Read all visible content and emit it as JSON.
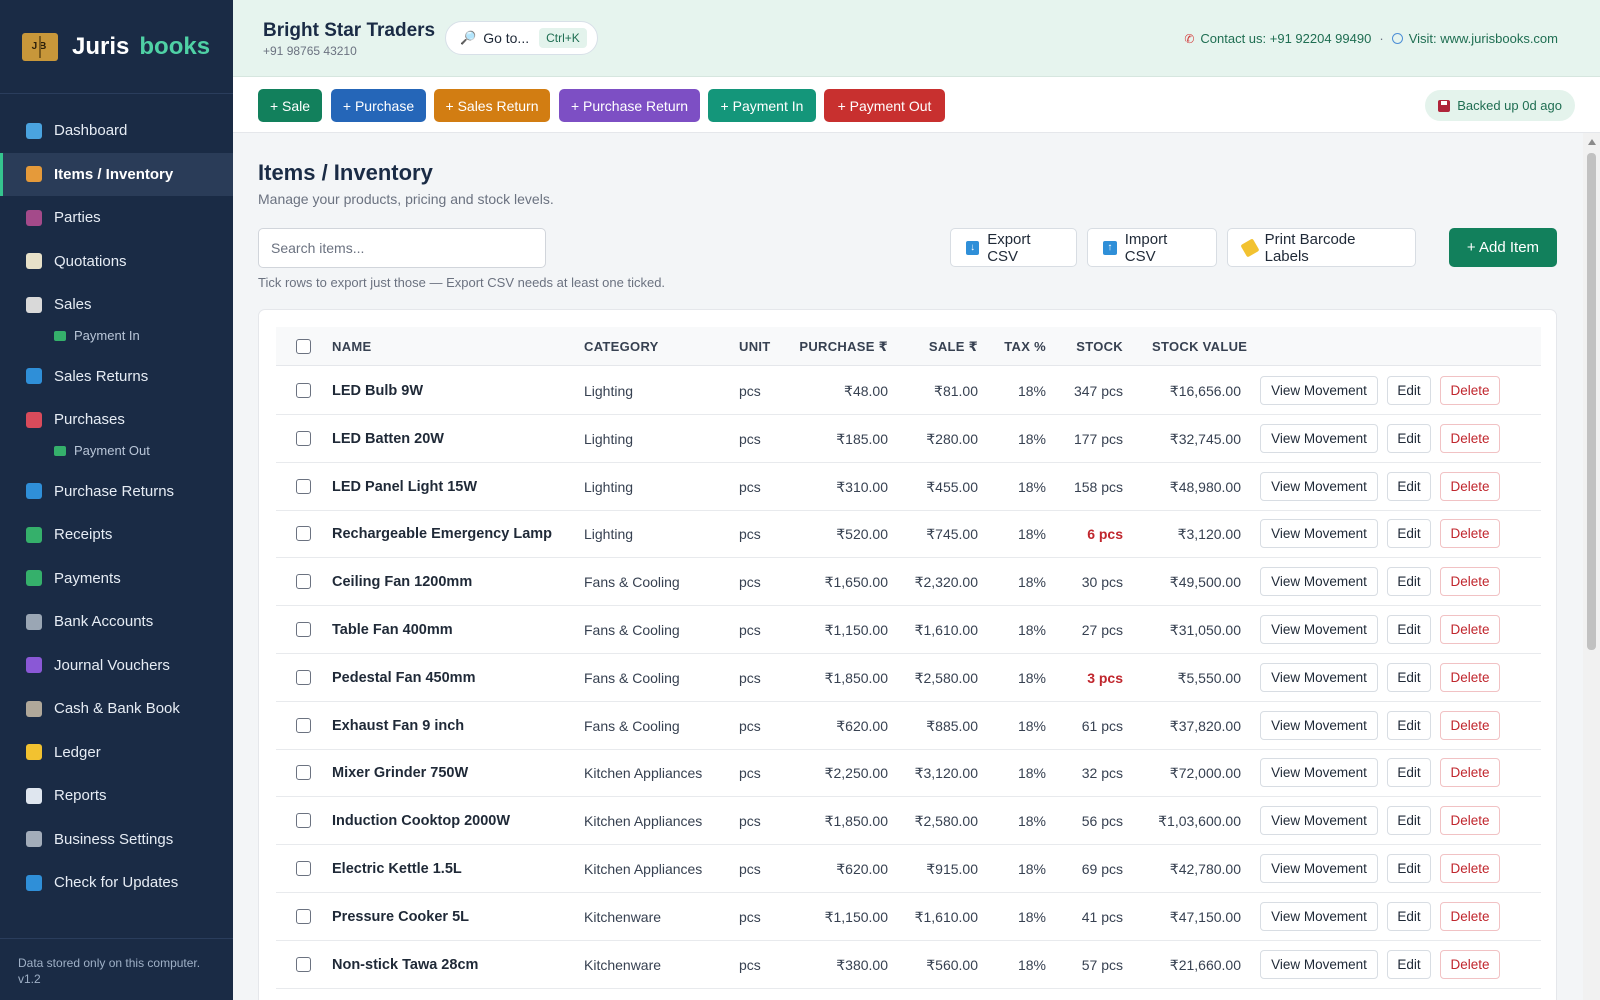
{
  "brand": {
    "name_part1": "Juris",
    "name_part2": "books",
    "logo_text": "JB"
  },
  "sidebar": {
    "items": [
      {
        "label": "Dashboard",
        "icon": "chart-icon",
        "color": "#4aa3df"
      },
      {
        "label": "Items / Inventory",
        "icon": "box-icon",
        "color": "#e59a3a",
        "active": true
      },
      {
        "label": "Parties",
        "icon": "people-icon",
        "color": "#a44a8a"
      },
      {
        "label": "Quotations",
        "icon": "memo-icon",
        "color": "#e7e1c9"
      },
      {
        "label": "Sales",
        "icon": "receipt-icon",
        "color": "#d9d9d9"
      },
      {
        "label": "Payment In",
        "icon": "cash-icon",
        "color": "#35b06b",
        "sub": true
      },
      {
        "label": "Sales Returns",
        "icon": "return-icon",
        "color": "#2f8fd8"
      },
      {
        "label": "Purchases",
        "icon": "cart-icon",
        "color": "#d94b5b"
      },
      {
        "label": "Payment Out",
        "icon": "cash-icon",
        "color": "#35b06b",
        "sub": true
      },
      {
        "label": "Purchase Returns",
        "icon": "return-icon",
        "color": "#2f8fd8"
      },
      {
        "label": "Receipts",
        "icon": "cash-icon",
        "color": "#35b06b"
      },
      {
        "label": "Payments",
        "icon": "money-wings-icon",
        "color": "#35b06b"
      },
      {
        "label": "Bank Accounts",
        "icon": "bank-icon",
        "color": "#9aa6b4"
      },
      {
        "label": "Journal Vouchers",
        "icon": "journal-icon",
        "color": "#8a58d6"
      },
      {
        "label": "Cash & Bank Book",
        "icon": "building-icon",
        "color": "#b0a89a"
      },
      {
        "label": "Ledger",
        "icon": "ledger-icon",
        "color": "#f2c230"
      },
      {
        "label": "Reports",
        "icon": "line-chart-icon",
        "color": "#dfe6ef"
      },
      {
        "label": "Business Settings",
        "icon": "gear-icon",
        "color": "#a3adba"
      },
      {
        "label": "Check for Updates",
        "icon": "refresh-icon",
        "color": "#2f8fd8"
      }
    ],
    "footer_line1": "Data stored only on this computer.",
    "footer_line2": "v1.2"
  },
  "header": {
    "business_name": "Bright Star Traders",
    "business_phone": "+91 98765 43210",
    "goto_label": "Go to...",
    "goto_shortcut": "Ctrl+K",
    "contact": "Contact us: +91 92204 99490",
    "separator": "·",
    "visit": "Visit: www.jurisbooks.com"
  },
  "quick_actions": [
    {
      "label": "+ Sale",
      "color": "#12805c"
    },
    {
      "label": "+ Purchase",
      "color": "#2566b8"
    },
    {
      "label": "+ Sales Return",
      "color": "#d27d12"
    },
    {
      "label": "+ Purchase Return",
      "color": "#7d4fc4"
    },
    {
      "label": "+ Payment In",
      "color": "#14967a"
    },
    {
      "label": "+ Payment Out",
      "color": "#c8302f"
    }
  ],
  "backup_status": "Backed up 0d ago",
  "page": {
    "title": "Items / Inventory",
    "subtitle": "Manage your products, pricing and stock levels.",
    "search_placeholder": "Search items...",
    "hint": "Tick rows to export just those — Export CSV needs at least one ticked.",
    "export_label": "Export CSV",
    "import_label": "Import CSV",
    "barcode_label": "Print Barcode Labels",
    "add_label": "+ Add Item"
  },
  "table": {
    "headers": {
      "name": "NAME",
      "category": "CATEGORY",
      "unit": "UNIT",
      "purchase": "PURCHASE ₹",
      "sale": "SALE ₹",
      "tax": "TAX %",
      "stock": "STOCK",
      "value": "STOCK VALUE"
    },
    "action_labels": {
      "view": "View Movement",
      "edit": "Edit",
      "delete": "Delete"
    },
    "rows": [
      {
        "name": "LED Bulb 9W",
        "category": "Lighting",
        "unit": "pcs",
        "purchase": "₹48.00",
        "sale": "₹81.00",
        "tax": "18%",
        "stock": "347 pcs",
        "value": "₹16,656.00",
        "low": false
      },
      {
        "name": "LED Batten 20W",
        "category": "Lighting",
        "unit": "pcs",
        "purchase": "₹185.00",
        "sale": "₹280.00",
        "tax": "18%",
        "stock": "177 pcs",
        "value": "₹32,745.00",
        "low": false
      },
      {
        "name": "LED Panel Light 15W",
        "category": "Lighting",
        "unit": "pcs",
        "purchase": "₹310.00",
        "sale": "₹455.00",
        "tax": "18%",
        "stock": "158 pcs",
        "value": "₹48,980.00",
        "low": false
      },
      {
        "name": "Rechargeable Emergency Lamp",
        "category": "Lighting",
        "unit": "pcs",
        "purchase": "₹520.00",
        "sale": "₹745.00",
        "tax": "18%",
        "stock": "6 pcs",
        "value": "₹3,120.00",
        "low": true
      },
      {
        "name": "Ceiling Fan 1200mm",
        "category": "Fans & Cooling",
        "unit": "pcs",
        "purchase": "₹1,650.00",
        "sale": "₹2,320.00",
        "tax": "18%",
        "stock": "30 pcs",
        "value": "₹49,500.00",
        "low": false
      },
      {
        "name": "Table Fan 400mm",
        "category": "Fans & Cooling",
        "unit": "pcs",
        "purchase": "₹1,150.00",
        "sale": "₹1,610.00",
        "tax": "18%",
        "stock": "27 pcs",
        "value": "₹31,050.00",
        "low": false
      },
      {
        "name": "Pedestal Fan 450mm",
        "category": "Fans & Cooling",
        "unit": "pcs",
        "purchase": "₹1,850.00",
        "sale": "₹2,580.00",
        "tax": "18%",
        "stock": "3 pcs",
        "value": "₹5,550.00",
        "low": true
      },
      {
        "name": "Exhaust Fan 9 inch",
        "category": "Fans & Cooling",
        "unit": "pcs",
        "purchase": "₹620.00",
        "sale": "₹885.00",
        "tax": "18%",
        "stock": "61 pcs",
        "value": "₹37,820.00",
        "low": false
      },
      {
        "name": "Mixer Grinder 750W",
        "category": "Kitchen Appliances",
        "unit": "pcs",
        "purchase": "₹2,250.00",
        "sale": "₹3,120.00",
        "tax": "18%",
        "stock": "32 pcs",
        "value": "₹72,000.00",
        "low": false
      },
      {
        "name": "Induction Cooktop 2000W",
        "category": "Kitchen Appliances",
        "unit": "pcs",
        "purchase": "₹1,850.00",
        "sale": "₹2,580.00",
        "tax": "18%",
        "stock": "56 pcs",
        "value": "₹1,03,600.00",
        "low": false
      },
      {
        "name": "Electric Kettle 1.5L",
        "category": "Kitchen Appliances",
        "unit": "pcs",
        "purchase": "₹620.00",
        "sale": "₹915.00",
        "tax": "18%",
        "stock": "69 pcs",
        "value": "₹42,780.00",
        "low": false
      },
      {
        "name": "Pressure Cooker 5L",
        "category": "Kitchenware",
        "unit": "pcs",
        "purchase": "₹1,150.00",
        "sale": "₹1,610.00",
        "tax": "18%",
        "stock": "41 pcs",
        "value": "₹47,150.00",
        "low": false
      },
      {
        "name": "Non-stick Tawa 28cm",
        "category": "Kitchenware",
        "unit": "pcs",
        "purchase": "₹380.00",
        "sale": "₹560.00",
        "tax": "18%",
        "stock": "57 pcs",
        "value": "₹21,660.00",
        "low": false
      }
    ]
  }
}
